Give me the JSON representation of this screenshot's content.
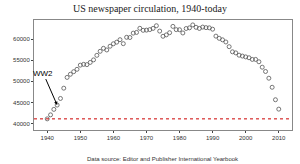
{
  "chart_data": {
    "type": "scatter",
    "title": "US newspaper circulation, 1940-today",
    "subtitle": "Data source: Editor and Publisher International Yearbook",
    "x": [
      1940,
      1941,
      1942,
      1943,
      1944,
      1945,
      1946,
      1947,
      1948,
      1949,
      1950,
      1951,
      1952,
      1953,
      1954,
      1955,
      1956,
      1957,
      1958,
      1959,
      1960,
      1961,
      1962,
      1963,
      1964,
      1965,
      1966,
      1967,
      1968,
      1969,
      1970,
      1971,
      1972,
      1973,
      1974,
      1975,
      1976,
      1977,
      1978,
      1979,
      1980,
      1981,
      1982,
      1983,
      1984,
      1985,
      1986,
      1987,
      1988,
      1989,
      1990,
      1991,
      1992,
      1993,
      1994,
      1995,
      1996,
      1997,
      1998,
      1999,
      2000,
      2001,
      2002,
      2003,
      2004,
      2005,
      2006,
      2007,
      2008,
      2009,
      2010
    ],
    "values": [
      41132,
      42080,
      43375,
      44393,
      45955,
      48384,
      50928,
      51673,
      52285,
      52846,
      53829,
      54018,
      53951,
      54472,
      55072,
      56147,
      57102,
      57805,
      57418,
      58300,
      58882,
      59261,
      59849,
      58905,
      60412,
      60358,
      61397,
      61561,
      62535,
      62060,
      62108,
      62231,
      62510,
      63147,
      61877,
      60655,
      60977,
      61495,
      62990,
      62223,
      62202,
      61431,
      62487,
      62645,
      63340,
      62766,
      62502,
      62826,
      62695,
      62649,
      62328,
      60687,
      60164,
      59812,
      59305,
      58193,
      56983,
      56728,
      56182,
      55979,
      55773,
      55578,
      55186,
      55185,
      54626,
      53345,
      52329,
      50742,
      48597,
      45653,
      43433
    ],
    "color": "#555555",
    "marker": "circle-open",
    "xlim": [
      1936,
      2014
    ],
    "xticks": [
      1940,
      1950,
      1960,
      1970,
      1980,
      1990,
      2000,
      2010
    ],
    "ylim": [
      38500,
      64500
    ],
    "yticks": [
      40000,
      45000,
      50000,
      55000,
      60000
    ],
    "grid": false,
    "reference_line": {
      "y": 41132,
      "color": "#cc0000",
      "line_style": "dot"
    },
    "annotations": [
      {
        "text": "WW2",
        "x": 1943,
        "y": 44393
      }
    ]
  }
}
